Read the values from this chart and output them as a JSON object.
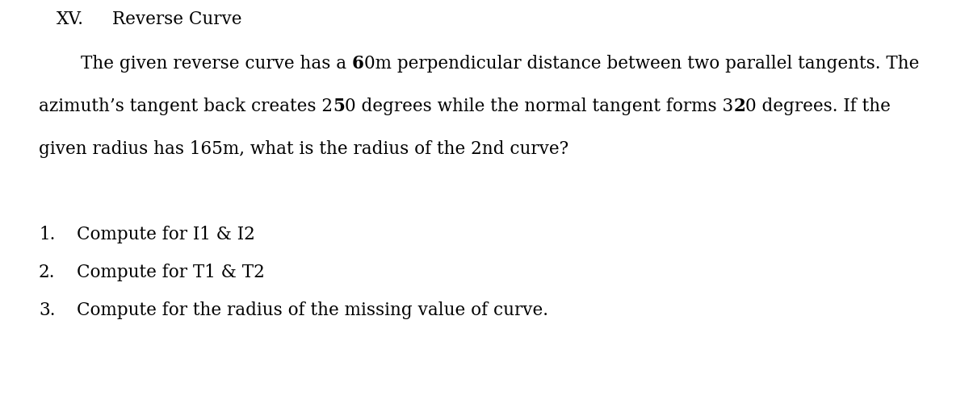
{
  "background_color": "#ffffff",
  "title_roman": "XV.",
  "title_text": "Reverse Curve",
  "para_fontsize": 15.5,
  "title_fontsize": 15.5,
  "items_fontsize": 15.5,
  "fig_width": 12.0,
  "fig_height": 4.95,
  "dpi": 100,
  "line1_prefix": "The given reverse curve has a ",
  "line1_bold": "6",
  "line1_mid": "0m perpendicular distance between two parallel tangents. The",
  "line2_prefix": "azimuth’s tangent back creates 2",
  "line2_bold": "5",
  "line2_mid": "0 degrees while the normal tangent forms 3",
  "line2_bold2": "2",
  "line2_suffix": "0 degrees. If the",
  "line3": "given radius has 165m, what is the radius of the 2nd curve?",
  "items": [
    "Compute for I1 & I2",
    "Compute for T1 & T2",
    "Compute for the radius of the missing value of curve."
  ]
}
